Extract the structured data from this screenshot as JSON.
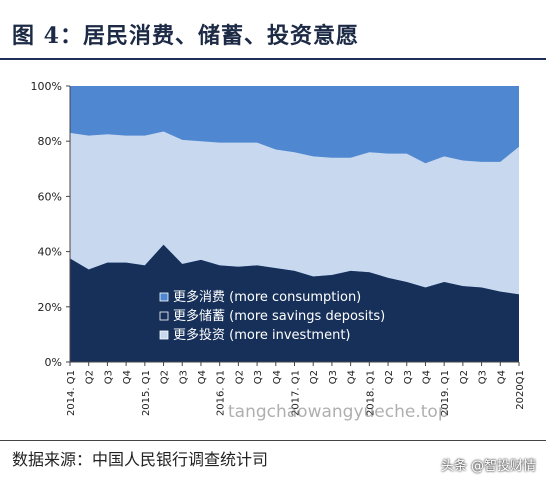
{
  "title": "图 4：居民消费、储蓄、投资意愿",
  "source": "数据来源：中国人民银行调查统计司",
  "watermark_mid": "tangchaowangyueche.top",
  "watermark_brand": "头条 @智投财情",
  "colors": {
    "consumption": "#4f88d0",
    "savings": "#17305a",
    "investment": "#c8d8ee",
    "title": "#1c2a45"
  },
  "chart_data": {
    "type": "area",
    "stacked": true,
    "percent": true,
    "categories": [
      "2014.Q1",
      "Q2",
      "Q3",
      "Q4",
      "2015.Q1",
      "Q2",
      "Q3",
      "Q4",
      "2016.Q1",
      "Q2",
      "Q3",
      "Q4",
      "2017.Q1",
      "Q2",
      "Q3",
      "Q4",
      "2018.Q1",
      "Q2",
      "Q3",
      "Q4",
      "2019.Q1",
      "Q2",
      "Q3",
      "Q4",
      "2020Q1"
    ],
    "series": [
      {
        "name": "更多储蓄 (more savings deposits)",
        "values": [
          37.5,
          33.5,
          36,
          36,
          35,
          42.5,
          35.5,
          37,
          35,
          34.5,
          35,
          34,
          33,
          31,
          31.5,
          33,
          32.5,
          30.5,
          29,
          27,
          29,
          27.5,
          27,
          25.5,
          24.5
        ]
      },
      {
        "name": "更多投资 (more investment)",
        "values": [
          45.5,
          48.5,
          46.5,
          46,
          47,
          41,
          45,
          43,
          44.5,
          45,
          44.5,
          43,
          43,
          43.5,
          42.5,
          41,
          43.5,
          45,
          46.5,
          45,
          45.5,
          45.5,
          45.5,
          47,
          53.5
        ]
      },
      {
        "name": "更多消费 (more consumption)",
        "values": [
          17,
          18,
          17.5,
          18,
          18,
          16.5,
          19.5,
          20,
          20.5,
          20.5,
          20.5,
          23,
          24,
          25.5,
          26,
          26,
          24,
          24.5,
          24.5,
          28,
          25.5,
          27,
          27.5,
          27.5,
          22
        ]
      }
    ],
    "y_ticks": [
      "0%",
      "20%",
      "40%",
      "60%",
      "80%",
      "100%"
    ],
    "x_tick_labels": [
      "2014. Q1",
      "Q2",
      "Q3",
      "Q4",
      "2015. Q1",
      "Q2",
      "Q3",
      "Q4",
      "2016. Q1",
      "Q2",
      "Q3",
      "Q4",
      "2017. Q1",
      "Q2",
      "Q3",
      "Q4",
      "2018. Q1",
      "Q2",
      "Q3",
      "Q4",
      "2019. Q1",
      "Q2",
      "Q3",
      "Q4",
      "2020Q1"
    ],
    "ylim": [
      0,
      100
    ],
    "legend": [
      {
        "label": "更多消费 (more consumption)",
        "key": "consumption"
      },
      {
        "label": "更多储蓄 (more savings deposits)",
        "key": "savings"
      },
      {
        "label": "更多投资 (more investment)",
        "key": "investment"
      }
    ]
  }
}
